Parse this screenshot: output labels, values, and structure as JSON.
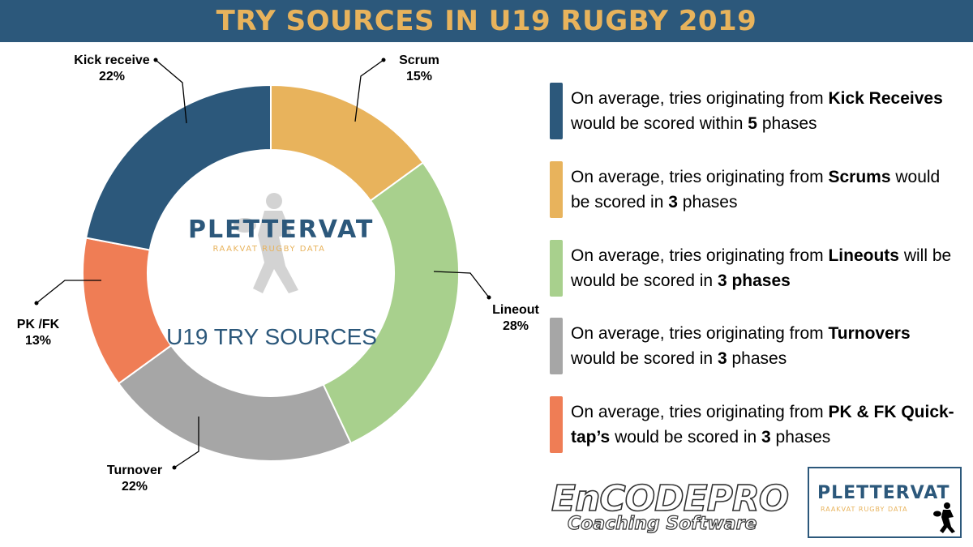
{
  "header": {
    "title": "TRY SOURCES IN U19 RUGBY 2019"
  },
  "chart_data": {
    "type": "pie",
    "donut": true,
    "title": "TRY SOURCES IN U19 RUGBY 2019",
    "center_label": "U19 TRY SOURCES",
    "categories": [
      "Scrum",
      "Lineout",
      "Turnover",
      "PK /FK",
      "Kick receive"
    ],
    "values": [
      15,
      28,
      22,
      13,
      22
    ],
    "labels": [
      "15%",
      "28%",
      "22%",
      "13%",
      "22%"
    ],
    "colors": [
      "#e8b35c",
      "#a8d08d",
      "#a6a6a6",
      "#ef7d55",
      "#2c587b"
    ]
  },
  "center_logo": {
    "main": "PLETTERVAT",
    "sub": "RAAKVAT RUGBY DATA"
  },
  "notes": [
    {
      "color": "#2c587b",
      "prefix": "On average, tries originating from ",
      "bold1": "Kick Receives",
      "middle": " would be scored within ",
      "bold2": "5",
      "suffix": " phases"
    },
    {
      "color": "#e8b35c",
      "prefix": "On average, tries originating from ",
      "bold1": "Scrums",
      "middle": " would be scored in ",
      "bold2": "3",
      "suffix": " phases"
    },
    {
      "color": "#a8d08d",
      "prefix": "On average, tries originating from ",
      "bold1": "Lineouts",
      "middle": " will be would be scored in ",
      "bold2": "3 phases",
      "suffix": ""
    },
    {
      "color": "#a6a6a6",
      "prefix": "On average, tries originating from ",
      "bold1": "Turnovers",
      "middle": " would be scored in ",
      "bold2": "3",
      "suffix": " phases"
    },
    {
      "color": "#ef7d55",
      "prefix": "On average, tries originating from ",
      "bold1": "PK & FK Quick-tap’s",
      "middle": " would be scored in ",
      "bold2": "3",
      "suffix": " phases"
    }
  ],
  "footer": {
    "encode_main": "EnCODEPRO",
    "encode_sub": "Coaching Software",
    "corner_logo_main": "PLETTERVAT",
    "corner_logo_sub": "RAAKVAT RUGBY DATA"
  }
}
